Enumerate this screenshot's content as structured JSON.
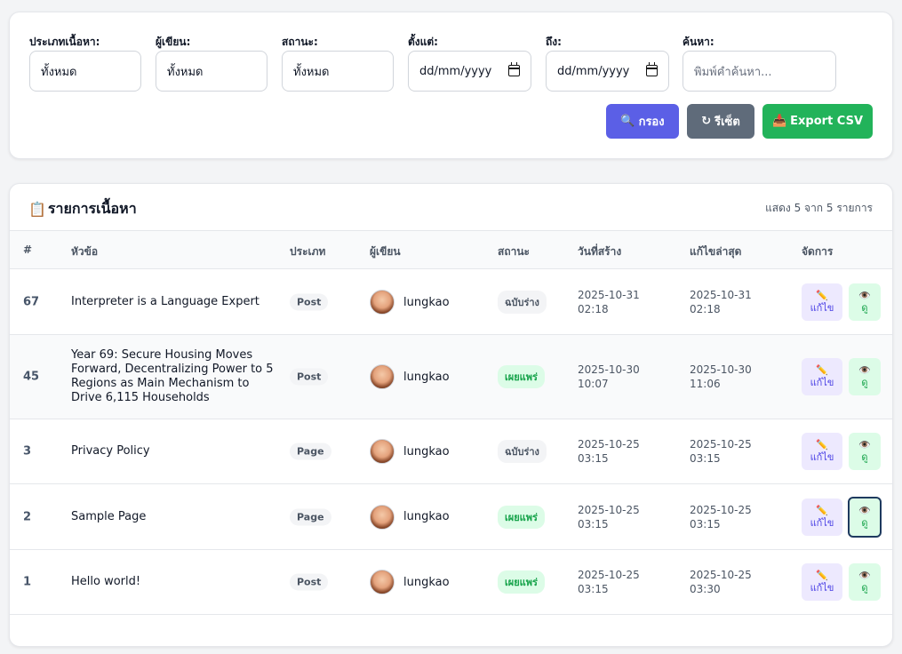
{
  "filters": {
    "type": {
      "label": "ประเภทเนื้อหา:",
      "value": "ทั้งหมด"
    },
    "author": {
      "label": "ผู้เขียน:",
      "value": "ทั้งหมด"
    },
    "status": {
      "label": "สถานะ:",
      "value": "ทั้งหมด"
    },
    "from": {
      "label": "ตั้งแต่:",
      "value": "dd/mm/yyyy"
    },
    "to": {
      "label": "ถึง:",
      "value": "dd/mm/yyyy"
    },
    "search": {
      "label": "ค้นหา:",
      "placeholder": "พิมพ์คำค้นหา..."
    },
    "buttons": {
      "filter": "กรอง",
      "reset": "รีเซ็ต",
      "export": "Export CSV"
    },
    "icons": {
      "filter": "magnifier-icon",
      "reset": "refresh-icon",
      "export": "inbox-tray-icon"
    }
  },
  "list": {
    "title": "รายการเนื้อหา",
    "title_icon": "clipboard-icon",
    "count": "แสดง 5 จาก 5 รายการ",
    "columns": [
      "#",
      "หัวข้อ",
      "ประเภท",
      "ผู้เขียน",
      "สถานะ",
      "วันที่สร้าง",
      "แก้ไขล่าสุด",
      "จัดการ"
    ],
    "rows": [
      {
        "id": "67",
        "title": "Interpreter is a Language Expert",
        "type": "Post",
        "author": "lungkao",
        "status": "ฉบับร่าง",
        "created": "2025-10-31",
        "created_time": "02:18",
        "updated": "2025-10-31",
        "updated_time": "02:18"
      },
      {
        "id": "45",
        "title": "Year 69: Secure Housing Moves Forward, Decentralizing Power to 5 Regions as Main Mechanism to Drive 6,115 Households",
        "type": "Post",
        "author": "lungkao",
        "status": "เผยแพร่",
        "created": "2025-10-30",
        "created_time": "10:07",
        "updated": "2025-10-30",
        "updated_time": "11:06"
      },
      {
        "id": "3",
        "title": "Privacy Policy",
        "type": "Page",
        "author": "lungkao",
        "status": "ฉบับร่าง",
        "created": "2025-10-25",
        "created_time": "03:15",
        "updated": "2025-10-25",
        "updated_time": "03:15"
      },
      {
        "id": "2",
        "title": "Sample Page",
        "type": "Page",
        "author": "lungkao",
        "status": "เผยแพร่",
        "created": "2025-10-25",
        "created_time": "03:15",
        "updated": "2025-10-25",
        "updated_time": "03:15"
      },
      {
        "id": "1",
        "title": "Hello world!",
        "type": "Post",
        "author": "lungkao",
        "status": "เผยแพร่",
        "created": "2025-10-25",
        "created_time": "03:15",
        "updated": "2025-10-25",
        "updated_time": "03:30"
      }
    ],
    "actions": {
      "edit": "แก้ไข",
      "view": "ดู",
      "edit_icon": "pencil-icon",
      "view_icon": "eye-icon"
    }
  },
  "colors": {
    "primary": "#5b5fe6",
    "secondary": "#5f6b7a",
    "success": "#22b35a",
    "published": "#16a34a",
    "draft": "#4b5563"
  }
}
